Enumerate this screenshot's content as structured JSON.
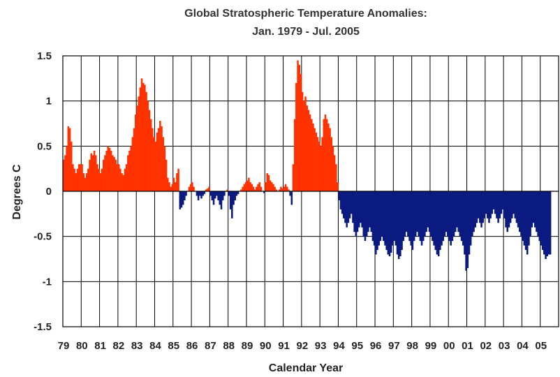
{
  "chart_data": {
    "type": "bar",
    "title_line1": "Global  Stratospheric Temperature Anomalies:",
    "title_line2": "Jan. 1979 -  Jul. 2005",
    "xlabel": "Calendar Year",
    "ylabel": "Degrees C",
    "ylim": [
      -1.5,
      1.5
    ],
    "yticks": [
      1.5,
      1,
      0.5,
      0,
      -0.5,
      -1,
      -1.5
    ],
    "ytick_labels": [
      "1.5",
      "1",
      "0.5",
      "0",
      "-0.5",
      "-1",
      "-1.5"
    ],
    "xtick_labels": [
      "79",
      "80",
      "81",
      "82",
      "83",
      "84",
      "85",
      "86",
      "87",
      "88",
      "89",
      "90",
      "91",
      "92",
      "93",
      "94",
      "95",
      "96",
      "97",
      "98",
      "99",
      "00",
      "01",
      "02",
      "03",
      "04",
      "05"
    ],
    "x_start_year": 1979,
    "series_unit": "monthly",
    "colors": {
      "positive": "#ff3300",
      "negative": "#0a1a80",
      "grid": "#000000"
    },
    "grid": true,
    "values": [
      0.35,
      0.4,
      0.5,
      0.72,
      0.7,
      0.55,
      0.3,
      0.25,
      0.2,
      0.25,
      0.3,
      0.3,
      0.3,
      0.2,
      0.15,
      0.2,
      0.25,
      0.35,
      0.42,
      0.4,
      0.45,
      0.4,
      0.3,
      0.25,
      0.2,
      0.25,
      0.35,
      0.4,
      0.45,
      0.5,
      0.48,
      0.45,
      0.4,
      0.38,
      0.35,
      0.3,
      0.3,
      0.25,
      0.2,
      0.18,
      0.25,
      0.3,
      0.4,
      0.45,
      0.5,
      0.6,
      0.7,
      0.85,
      0.95,
      1.05,
      1.15,
      1.25,
      1.2,
      1.18,
      1.1,
      1.0,
      0.9,
      0.8,
      0.7,
      0.6,
      0.55,
      0.65,
      0.7,
      0.78,
      0.72,
      0.6,
      0.5,
      0.35,
      0.15,
      0.1,
      0.05,
      0.08,
      0.15,
      0.1,
      0.2,
      0.25,
      -0.2,
      -0.18,
      -0.15,
      -0.1,
      -0.05,
      0,
      0.05,
      0.08,
      0.1,
      0.05,
      0,
      -0.05,
      -0.1,
      -0.05,
      -0.08,
      -0.05,
      -0.03,
      0.02,
      0.03,
      0.05,
      -0.05,
      -0.1,
      -0.15,
      -0.08,
      -0.05,
      -0.1,
      -0.15,
      -0.2,
      -0.1,
      -0.05,
      0,
      0.02,
      -0.05,
      -0.2,
      -0.3,
      -0.15,
      -0.1,
      -0.05,
      -0.03,
      0,
      0.02,
      0.05,
      0.08,
      0.1,
      0.12,
      0.15,
      0.1,
      0.08,
      0.05,
      0.02,
      0.05,
      0.08,
      0.1,
      0.05,
      0,
      -0.02,
      0.1,
      0.2,
      0.18,
      0.12,
      0.1,
      0.08,
      0.05,
      0.02,
      0,
      0.02,
      0.05,
      0.03,
      0.05,
      0.08,
      0.05,
      0.02,
      -0.05,
      -0.15,
      0.3,
      0.8,
      1.2,
      1.45,
      1.4,
      1.3,
      1.1,
      1.0,
      1.05,
      0.95,
      0.9,
      0.85,
      0.8,
      0.75,
      0.7,
      0.65,
      0.6,
      0.55,
      0.5,
      0.6,
      0.8,
      0.85,
      0.8,
      0.75,
      0.7,
      0.6,
      0.5,
      0.4,
      0.3,
      0.1,
      -0.1,
      -0.2,
      -0.25,
      -0.3,
      -0.35,
      -0.4,
      -0.35,
      -0.3,
      -0.25,
      -0.35,
      -0.45,
      -0.5,
      -0.45,
      -0.4,
      -0.35,
      -0.4,
      -0.5,
      -0.55,
      -0.5,
      -0.45,
      -0.4,
      -0.45,
      -0.55,
      -0.6,
      -0.7,
      -0.65,
      -0.6,
      -0.55,
      -0.5,
      -0.55,
      -0.6,
      -0.65,
      -0.7,
      -0.72,
      -0.68,
      -0.6,
      -0.55,
      -0.6,
      -0.7,
      -0.75,
      -0.72,
      -0.65,
      -0.55,
      -0.5,
      -0.45,
      -0.5,
      -0.55,
      -0.6,
      -0.65,
      -0.55,
      -0.5,
      -0.45,
      -0.5,
      -0.55,
      -0.6,
      -0.55,
      -0.5,
      -0.45,
      -0.4,
      -0.45,
      -0.5,
      -0.55,
      -0.6,
      -0.65,
      -0.7,
      -0.72,
      -0.65,
      -0.6,
      -0.55,
      -0.5,
      -0.45,
      -0.5,
      -0.55,
      -0.6,
      -0.55,
      -0.5,
      -0.45,
      -0.4,
      -0.45,
      -0.5,
      -0.55,
      -0.6,
      -0.7,
      -0.88,
      -0.85,
      -0.7,
      -0.6,
      -0.5,
      -0.45,
      -0.4,
      -0.35,
      -0.3,
      -0.35,
      -0.4,
      -0.35,
      -0.3,
      -0.25,
      -0.3,
      -0.35,
      -0.3,
      -0.25,
      -0.2,
      -0.25,
      -0.3,
      -0.35,
      -0.3,
      -0.25,
      -0.2,
      -0.3,
      -0.4,
      -0.45,
      -0.4,
      -0.35,
      -0.3,
      -0.25,
      -0.3,
      -0.35,
      -0.4,
      -0.45,
      -0.5,
      -0.55,
      -0.6,
      -0.65,
      -0.7,
      -0.6,
      -0.5,
      -0.4,
      -0.35,
      -0.4,
      -0.45,
      -0.5,
      -0.55,
      -0.6,
      -0.65,
      -0.7,
      -0.75,
      -0.72,
      -0.7,
      -0.7
    ]
  }
}
